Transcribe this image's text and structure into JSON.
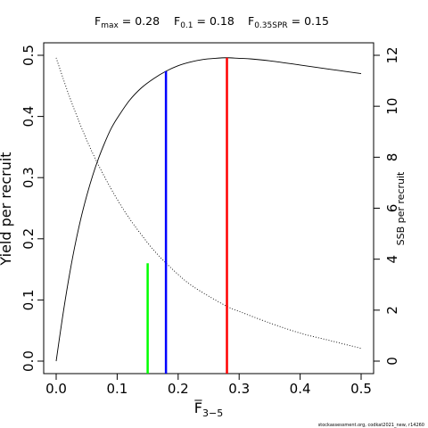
{
  "chart_data": {
    "type": "line",
    "title": {
      "fmax": {
        "label_main": "F",
        "label_sub": "max",
        "value": "0.28"
      },
      "f01": {
        "label_main": "F",
        "label_sub": "0.1",
        "value": "0.18"
      },
      "f035": {
        "label_main": "F",
        "label_sub": "0.35SPR",
        "value": "0.15"
      }
    },
    "xlabel": {
      "main": "F",
      "sub": "3−5"
    },
    "ylabel_left": "Yield per recruit",
    "ylabel_right": "SSB per recruit",
    "xlim": [
      0,
      0.5
    ],
    "ylim_left": [
      0,
      0.5
    ],
    "ylim_right": [
      0,
      12
    ],
    "x_ticks": [
      "0.0",
      "0.1",
      "0.2",
      "0.3",
      "0.4",
      "0.5"
    ],
    "y_left_ticks": [
      "0.0",
      "0.1",
      "0.2",
      "0.3",
      "0.4",
      "0.5"
    ],
    "y_right_ticks": [
      "0",
      "2",
      "4",
      "6",
      "8",
      "10",
      "12"
    ],
    "series": [
      {
        "name": "Yield per recruit",
        "axis": "left",
        "style": "solid",
        "color": "#000000",
        "x": [
          0,
          0.01,
          0.02,
          0.03,
          0.04,
          0.05,
          0.06,
          0.07,
          0.08,
          0.09,
          0.1,
          0.12,
          0.14,
          0.16,
          0.18,
          0.2,
          0.22,
          0.24,
          0.26,
          0.28,
          0.3,
          0.32,
          0.35,
          0.4,
          0.45,
          0.5
        ],
        "y": [
          0.0,
          0.069,
          0.131,
          0.185,
          0.231,
          0.27,
          0.304,
          0.333,
          0.358,
          0.38,
          0.397,
          0.426,
          0.447,
          0.462,
          0.474,
          0.483,
          0.489,
          0.493,
          0.495,
          0.496,
          0.495,
          0.494,
          0.491,
          0.484,
          0.477,
          0.47
        ]
      },
      {
        "name": "SSB per recruit",
        "axis": "right",
        "style": "dotted",
        "color": "#000000",
        "x": [
          0,
          0.02,
          0.04,
          0.06,
          0.08,
          0.1,
          0.12,
          0.14,
          0.16,
          0.18,
          0.2,
          0.22,
          0.25,
          0.28,
          0.3,
          0.35,
          0.4,
          0.45,
          0.5
        ],
        "y": [
          11.9,
          10.5,
          9.25,
          8.15,
          7.2,
          6.35,
          5.6,
          4.95,
          4.35,
          3.85,
          3.4,
          3.0,
          2.55,
          2.15,
          1.95,
          1.5,
          1.1,
          0.8,
          0.5
        ]
      }
    ],
    "reference_lines": [
      {
        "name": "F0.35SPR",
        "x": 0.15,
        "y_top": 0.16,
        "color": "#00ff00"
      },
      {
        "name": "F0.1",
        "x": 0.18,
        "y_top": 0.474,
        "color": "#0000ff"
      },
      {
        "name": "Fmax",
        "x": 0.28,
        "y_top": 0.496,
        "color": "#ff0000"
      }
    ],
    "grid": false,
    "legend": "none"
  },
  "footer": "stockassessment.org, codkat2021_new, r14260"
}
